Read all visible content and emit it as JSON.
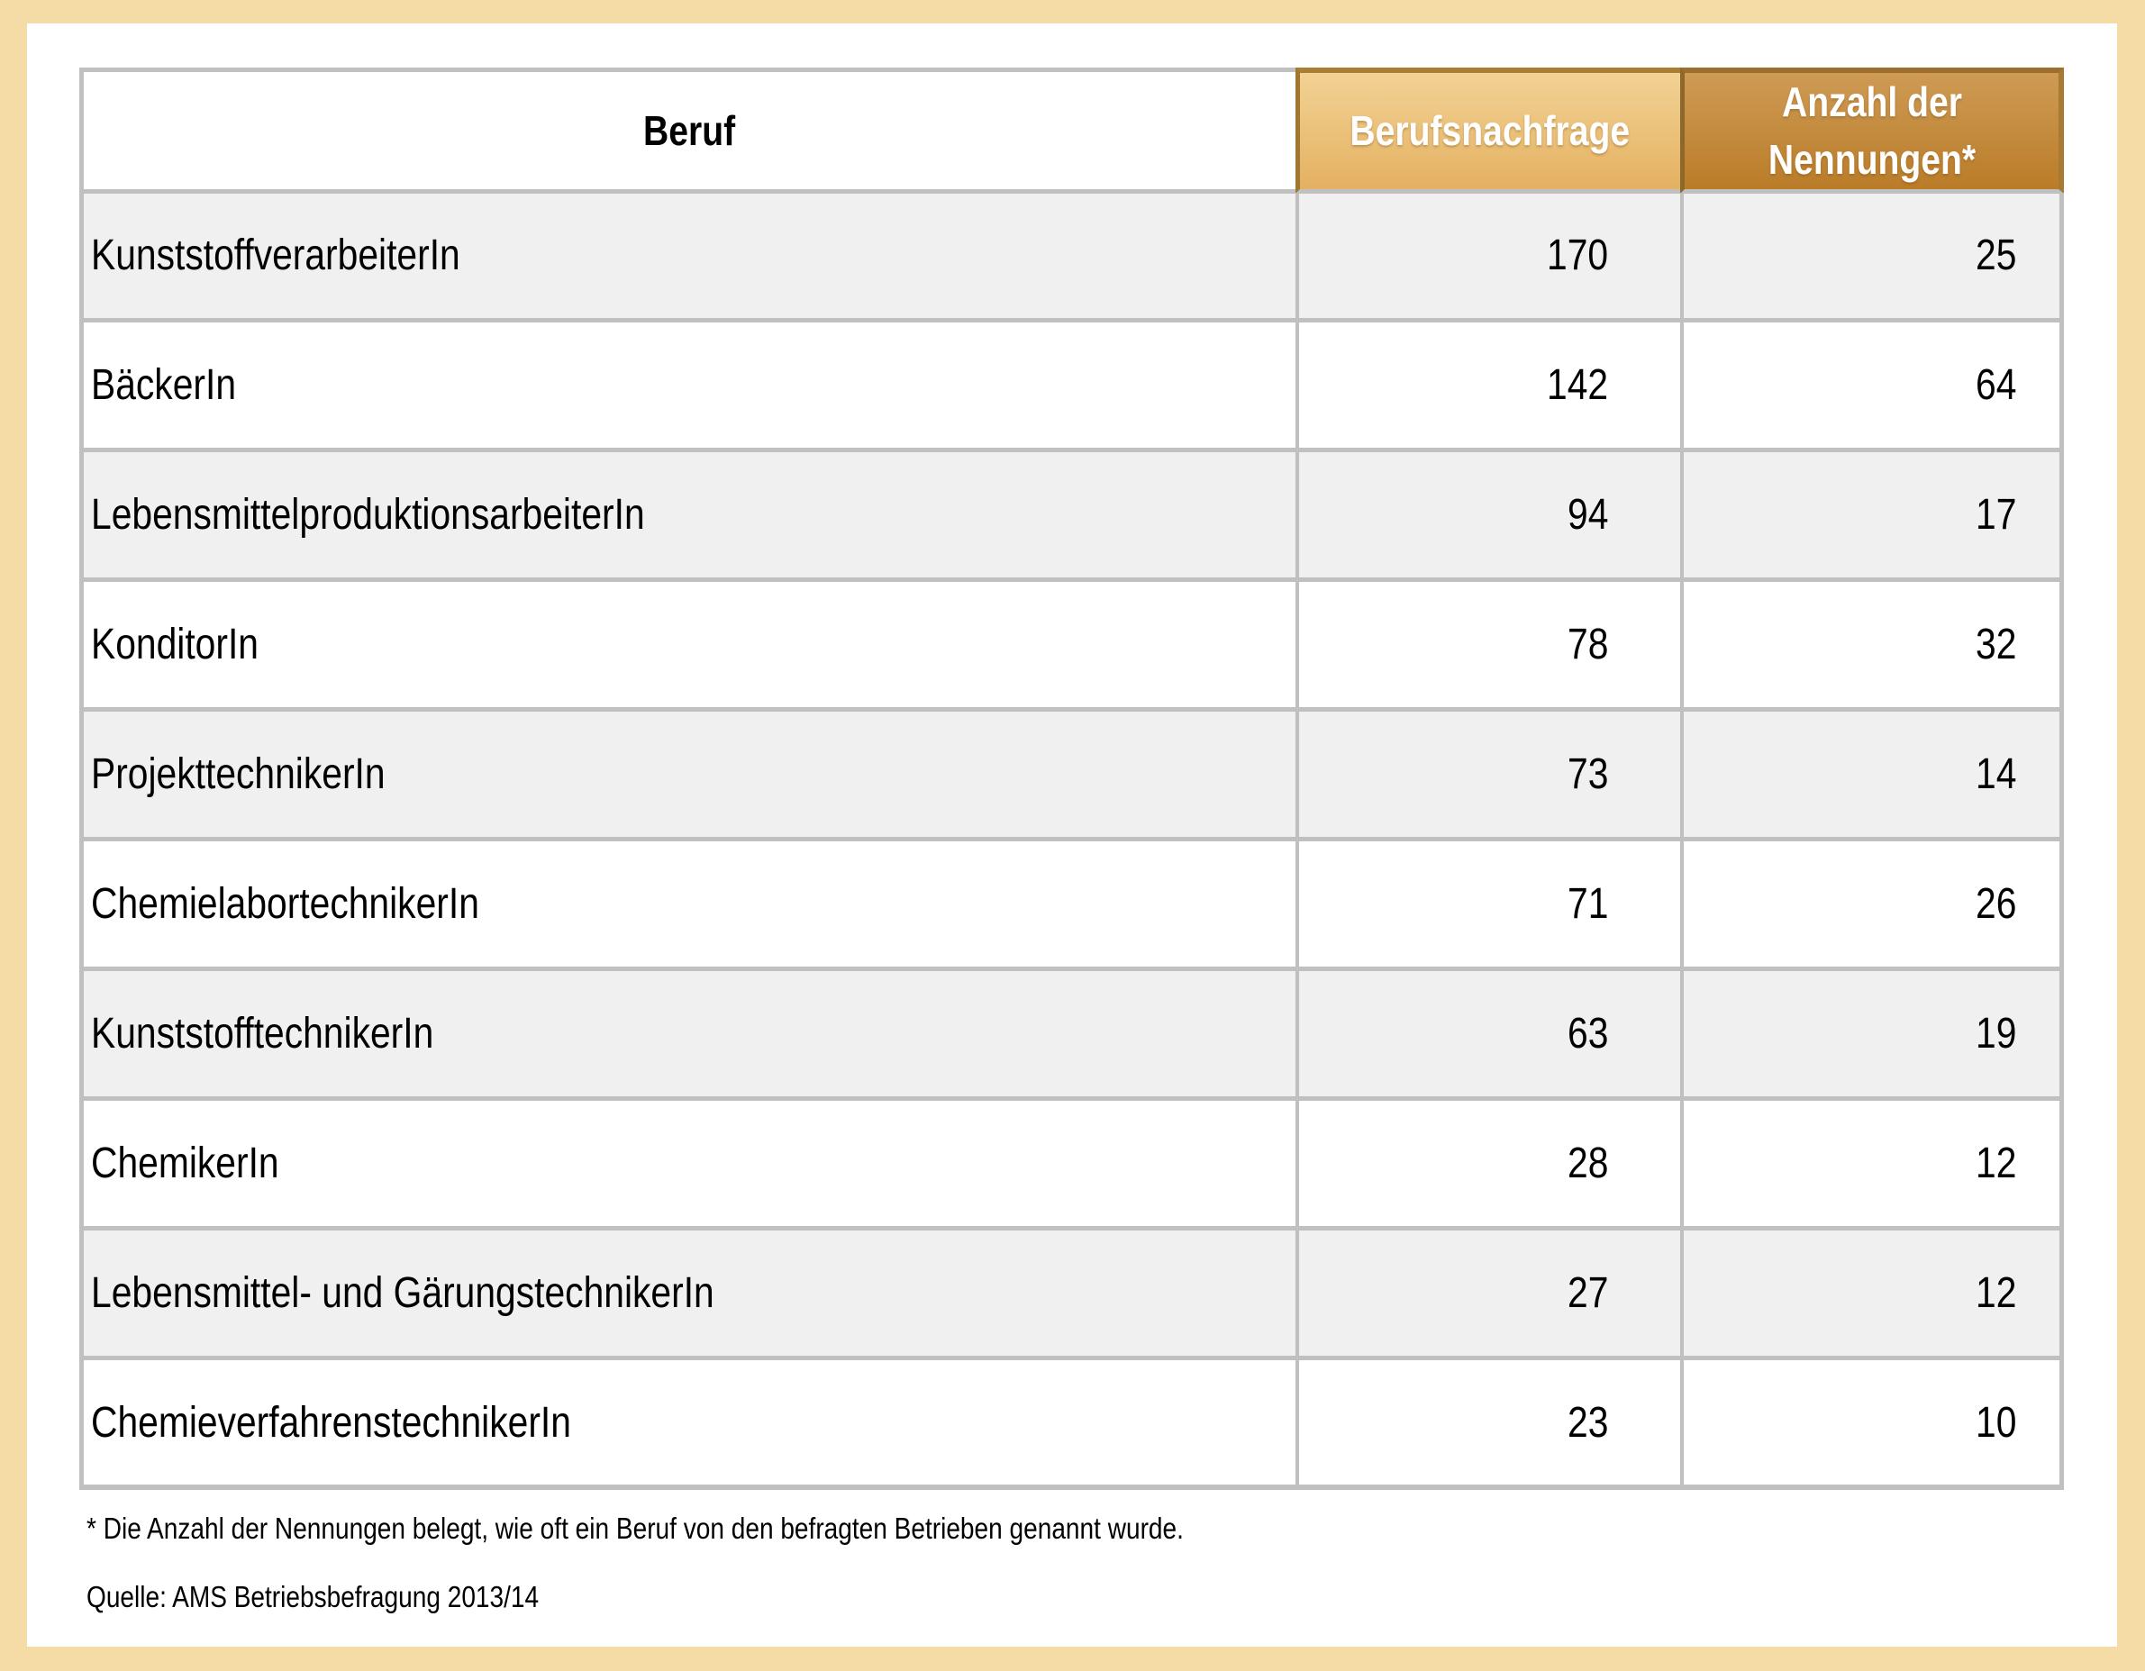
{
  "table": {
    "header": {
      "beruf": "Beruf",
      "nachfrage": "Berufsnachfrage",
      "nennungen": "Anzahl der Nennungen*"
    },
    "rows": [
      {
        "beruf": "KunststoffverarbeiterIn",
        "nachfrage": "170",
        "nennungen": "25"
      },
      {
        "beruf": "BäckerIn",
        "nachfrage": "142",
        "nennungen": "64"
      },
      {
        "beruf": "LebensmittelproduktionsarbeiterIn",
        "nachfrage": "94",
        "nennungen": "17"
      },
      {
        "beruf": "KonditorIn",
        "nachfrage": "78",
        "nennungen": "32"
      },
      {
        "beruf": "ProjekttechnikerIn",
        "nachfrage": "73",
        "nennungen": "14"
      },
      {
        "beruf": "ChemielabortechnikerIn",
        "nachfrage": "71",
        "nennungen": "26"
      },
      {
        "beruf": "KunststofftechnikerIn",
        "nachfrage": "63",
        "nennungen": "19"
      },
      {
        "beruf": "ChemikerIn",
        "nachfrage": "28",
        "nennungen": "12"
      },
      {
        "beruf": "Lebensmittel- und GärungstechnikerIn",
        "nachfrage": "27",
        "nennungen": "12"
      },
      {
        "beruf": "ChemieverfahrenstechnikerIn",
        "nachfrage": "23",
        "nennungen": "10"
      }
    ]
  },
  "notes": {
    "footnote": "* Die Anzahl der Nennungen belegt, wie oft ein Beruf von den befragten Betrieben genannt wurde.",
    "source": "Quelle: AMS Betriebsbefragung 2013/14"
  },
  "colors": {
    "frame_background": "#F5DBA6",
    "table_border": "#C0C0C0",
    "row_alt_background": "#F0F0F0",
    "header_nachfrage_gradient_top": "#F2D295",
    "header_nachfrage_gradient_bottom": "#E4B161",
    "header_nennungen_gradient_top": "#CE9B55",
    "header_nennungen_gradient_bottom": "#BA7C28",
    "header_dark_border": "#A5782F",
    "header_text": "#FFFFFF",
    "body_text": "#000000"
  }
}
